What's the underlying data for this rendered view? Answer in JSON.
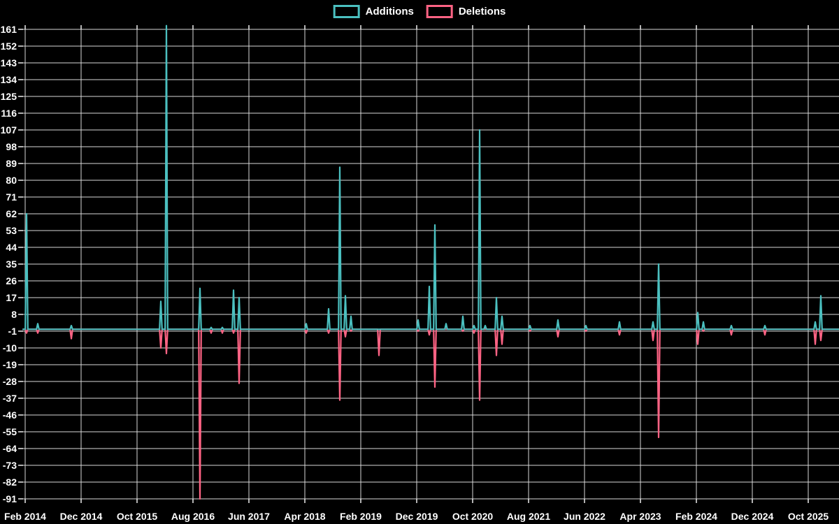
{
  "legend": {
    "additions_label": "Additions",
    "deletions_label": "Deletions"
  },
  "colors": {
    "additions": "#4BC0C0",
    "deletions": "#FF6384",
    "background": "#000000",
    "grid": "#FFFFFF",
    "text": "#FFFFFF"
  },
  "chart_data": {
    "type": "line",
    "title": "",
    "legend_position": "top-center",
    "grid": true,
    "x_axis": {
      "tick_labels": [
        "Feb 2014",
        "Dec 2014",
        "Oct 2015",
        "Aug 2016",
        "Jun 2017",
        "Apr 2018",
        "Feb 2019",
        "Dec 2019",
        "Oct 2020",
        "Aug 2021",
        "Jun 2022",
        "Apr 2023",
        "Feb 2024",
        "Dec 2024",
        "Oct 2025"
      ],
      "months_per_tick": 10
    },
    "y_axis": {
      "tick_labels": [
        161,
        152,
        143,
        134,
        125,
        116,
        107,
        98,
        89,
        80,
        71,
        62,
        53,
        44,
        35,
        26,
        17,
        8,
        -1,
        -10,
        -19,
        -28,
        -37,
        -46,
        -55,
        -64,
        -73,
        -82,
        -91
      ],
      "min": -91,
      "max": 161,
      "step": 9
    },
    "series": [
      {
        "name": "Additions",
        "color_key": "additions"
      },
      {
        "name": "Deletions",
        "color_key": "deletions"
      }
    ],
    "baseline": 0,
    "points": [
      {
        "month": "2014-02",
        "additions": 62,
        "deletions": -2
      },
      {
        "month": "2014-04",
        "additions": 3,
        "deletions": -2
      },
      {
        "month": "2014-10",
        "additions": 2,
        "deletions": -5
      },
      {
        "month": "2016-02",
        "additions": 15,
        "deletions": -10
      },
      {
        "month": "2016-03",
        "additions": 163,
        "deletions": -13
      },
      {
        "month": "2016-09",
        "additions": 22,
        "deletions": -91
      },
      {
        "month": "2016-11",
        "additions": 1,
        "deletions": -2
      },
      {
        "month": "2017-01",
        "additions": 1,
        "deletions": -2
      },
      {
        "month": "2017-03",
        "additions": 21,
        "deletions": -2
      },
      {
        "month": "2017-04",
        "additions": 17,
        "deletions": -29
      },
      {
        "month": "2018-04",
        "additions": 3,
        "deletions": -2
      },
      {
        "month": "2018-08",
        "additions": 11,
        "deletions": -2
      },
      {
        "month": "2018-10",
        "additions": 87,
        "deletions": -38
      },
      {
        "month": "2018-11",
        "additions": 18,
        "deletions": -4
      },
      {
        "month": "2018-12",
        "additions": 7,
        "deletions": -1
      },
      {
        "month": "2019-05",
        "additions": 0,
        "deletions": -14
      },
      {
        "month": "2019-12",
        "additions": 5,
        "deletions": -1
      },
      {
        "month": "2020-02",
        "additions": 23,
        "deletions": -3
      },
      {
        "month": "2020-03",
        "additions": 56,
        "deletions": -31
      },
      {
        "month": "2020-05",
        "additions": 3,
        "deletions": 0
      },
      {
        "month": "2020-08",
        "additions": 7,
        "deletions": -1
      },
      {
        "month": "2020-10",
        "additions": 2,
        "deletions": -2
      },
      {
        "month": "2020-11",
        "additions": 107,
        "deletions": -38
      },
      {
        "month": "2020-12",
        "additions": 2,
        "deletions": 0
      },
      {
        "month": "2021-02",
        "additions": 17,
        "deletions": -14
      },
      {
        "month": "2021-03",
        "additions": 7,
        "deletions": -8
      },
      {
        "month": "2021-08",
        "additions": 2,
        "deletions": -1
      },
      {
        "month": "2022-01",
        "additions": 5,
        "deletions": -4
      },
      {
        "month": "2022-06",
        "additions": 2,
        "deletions": -1
      },
      {
        "month": "2022-12",
        "additions": 4,
        "deletions": -3
      },
      {
        "month": "2023-06",
        "additions": 4,
        "deletions": -6
      },
      {
        "month": "2023-07",
        "additions": 35,
        "deletions": -58
      },
      {
        "month": "2024-02",
        "additions": 9,
        "deletions": -8
      },
      {
        "month": "2024-03",
        "additions": 4,
        "deletions": -1
      },
      {
        "month": "2024-08",
        "additions": 2,
        "deletions": -3
      },
      {
        "month": "2025-02",
        "additions": 2,
        "deletions": -3
      },
      {
        "month": "2025-11",
        "additions": 4,
        "deletions": -8
      },
      {
        "month": "2025-12",
        "additions": 18,
        "deletions": -6
      }
    ]
  }
}
